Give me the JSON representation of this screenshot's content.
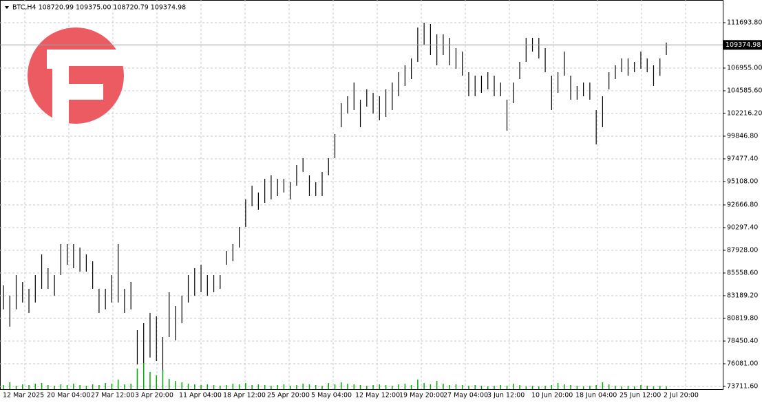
{
  "chart_data": {
    "type": "ohlc",
    "title": "BTC,H4  108720.99 109375.00 108720.79 109374.98",
    "x_labels": [
      "12 Mar 2025",
      "20 Mar 04:00",
      "27 Mar 12:00",
      "3 Apr 20:00",
      "11 Apr 04:00",
      "18 Apr 12:00",
      "25 Apr 20:00",
      "5 May 04:00",
      "12 May 12:00",
      "19 May 20:00",
      "27 May 04:00",
      "3 Jun 12:00",
      "10 Jun 20:00",
      "18 Jun 04:00",
      "25 Jun 12:00",
      "2 Jul 20:00"
    ],
    "series": [
      {
        "name": "BTC",
        "color": "#000000",
        "low": [
          81753,
          79958,
          81753,
          82471,
          81394,
          82471,
          83907,
          83907,
          83189,
          85343,
          86420,
          86061,
          85702,
          85702,
          83907,
          81394,
          81753,
          82471,
          82471,
          81394,
          81753,
          76009,
          75650,
          76727,
          76368,
          75291,
          78881,
          78522,
          80317,
          82471,
          83189,
          83548,
          83189,
          83548,
          83907,
          86420,
          86779,
          88215,
          90369,
          92523,
          92164,
          92882,
          93241,
          93600,
          93959,
          93241,
          94677,
          96113,
          93600,
          93600,
          93600,
          95754,
          97549,
          100780,
          102216,
          102575,
          100780,
          102934,
          102216,
          101498,
          101857,
          102575,
          104011,
          105088,
          105806,
          107601,
          109396,
          108319,
          107242,
          108319,
          107242,
          106883,
          106165,
          104011,
          104011,
          104370,
          104729,
          104011,
          104011,
          100421,
          103293,
          105806,
          107601,
          108678,
          107960,
          106524,
          102575,
          104370,
          106165,
          103652,
          103652,
          104011,
          103652,
          98985,
          100780,
          104729,
          105806,
          106524,
          106165,
          106524,
          106883,
          106524,
          105088,
          106165,
          108319
        ],
        "high": [
          84266,
          83189,
          85343,
          84625,
          83907,
          85343,
          87497,
          86061,
          85343,
          88574,
          88574,
          88574,
          88215,
          87497,
          86779,
          83907,
          83907,
          85343,
          88574,
          83907,
          84625,
          79599,
          80317,
          81394,
          81035,
          78881,
          83548,
          82112,
          83189,
          85343,
          86061,
          86420,
          85343,
          85343,
          85343,
          87856,
          88574,
          90369,
          93241,
          94677,
          93959,
          95395,
          95754,
          95395,
          95395,
          95036,
          96831,
          97549,
          95754,
          95036,
          96113,
          97549,
          100062,
          103293,
          104011,
          105447,
          103652,
          104729,
          104370,
          104011,
          104729,
          105447,
          106524,
          107242,
          107960,
          111191,
          111694,
          111550,
          110473,
          110473,
          110114,
          109037,
          108678,
          106524,
          106165,
          106165,
          106524,
          106165,
          105447,
          103652,
          105447,
          107601,
          110114,
          110114,
          110114,
          109037,
          106165,
          106524,
          108678,
          106165,
          105088,
          105447,
          105447,
          102575,
          104011,
          106524,
          107242,
          107960,
          107960,
          107601,
          108678,
          107960,
          107242,
          107960,
          109612
        ]
      }
    ],
    "volume": {
      "color": "#00aa00",
      "values": [
        6,
        10,
        5,
        7,
        6,
        8,
        9,
        6,
        5,
        7,
        6,
        8,
        6,
        5,
        7,
        6,
        9,
        8,
        14,
        7,
        8,
        30,
        38,
        25,
        20,
        28,
        15,
        12,
        10,
        8,
        7,
        6,
        7,
        6,
        5,
        6,
        8,
        7,
        9,
        6,
        7,
        6,
        5,
        6,
        7,
        5,
        6,
        8,
        7,
        6,
        5,
        9,
        7,
        10,
        8,
        7,
        6,
        5,
        6,
        7,
        6,
        5,
        7,
        8,
        6,
        14,
        9,
        7,
        12,
        8,
        6,
        7,
        6,
        5,
        6,
        5,
        4,
        5,
        6,
        5,
        8,
        6,
        4,
        5,
        4,
        5,
        6,
        9,
        7,
        6,
        5,
        4,
        5,
        6,
        10,
        7,
        5,
        4,
        5,
        4,
        6,
        5,
        4,
        5,
        4
      ]
    },
    "current_price": 109374.98,
    "ylim": [
      73426,
      114063
    ],
    "yticks": [
      {
        "value": 73711.6,
        "label": "73711.60"
      },
      {
        "value": 76081,
        "label": "76081.00"
      },
      {
        "value": 78450.4,
        "label": "78450.40"
      },
      {
        "value": 80819.8,
        "label": "80819.80"
      },
      {
        "value": 83189.2,
        "label": "83189.20"
      },
      {
        "value": 85558.6,
        "label": "85558.60"
      },
      {
        "value": 87928,
        "label": "87928.00"
      },
      {
        "value": 90297.4,
        "label": "90297.40"
      },
      {
        "value": 92666.8,
        "label": "92666.80"
      },
      {
        "value": 95108,
        "label": "95108.00"
      },
      {
        "value": 97477.4,
        "label": "97477.40"
      },
      {
        "value": 99846.8,
        "label": "99846.80"
      },
      {
        "value": 102216.2,
        "label": "102216.20"
      },
      {
        "value": 104585.6,
        "label": "104585.60"
      },
      {
        "value": 106955,
        "label": "106955.00"
      },
      {
        "value": 111693.8,
        "label": "111693.80"
      }
    ],
    "grid": true
  }
}
